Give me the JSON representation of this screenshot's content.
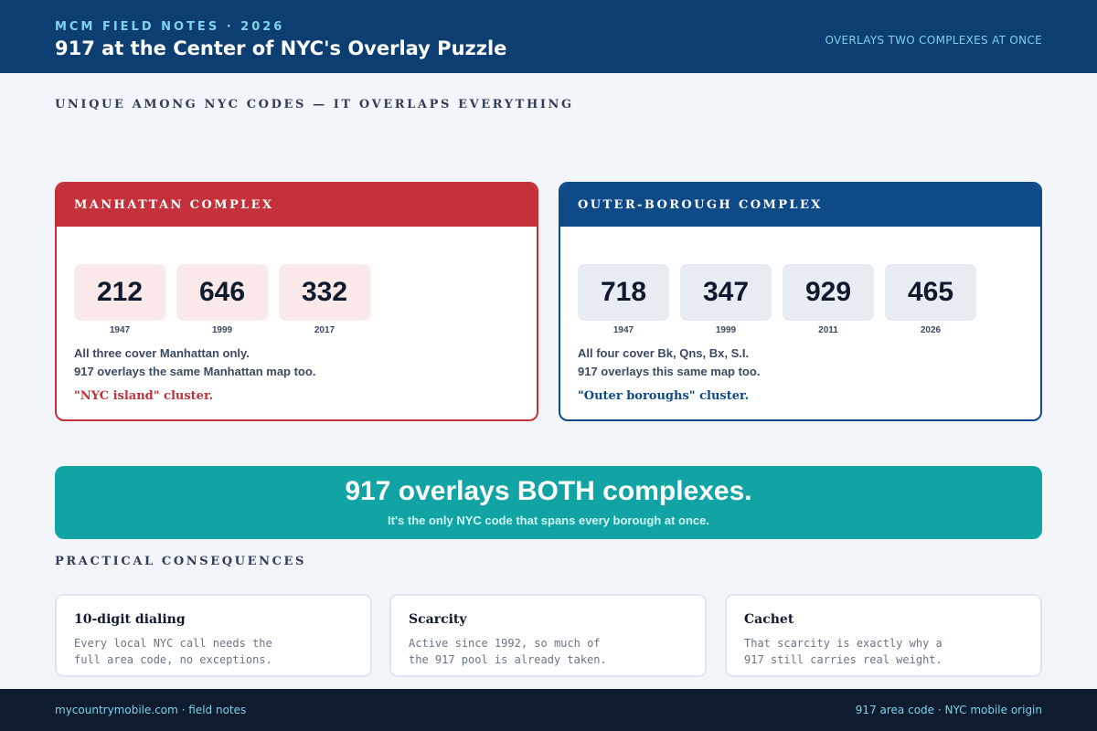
{
  "header": {
    "eyebrow": "MCM FIELD NOTES · 2026",
    "title": "917 at the Center of NYC's Overlay Puzzle",
    "tag": "OVERLAYS TWO COMPLEXES AT ONCE"
  },
  "section_top": "UNIQUE AMONG NYC CODES — IT OVERLAPS EVERYTHING",
  "manhattan": {
    "label": "MANHATTAN COMPLEX",
    "codes": [
      {
        "code": "212",
        "year": "1947"
      },
      {
        "code": "646",
        "year": "1999"
      },
      {
        "code": "332",
        "year": "2017"
      }
    ],
    "line1": "All three cover Manhattan only.",
    "line2": "917 overlays the same Manhattan map too.",
    "cluster": "\"NYC island\" cluster.",
    "accent": "#c4313a"
  },
  "outer": {
    "label": "OUTER-BOROUGH COMPLEX",
    "codes": [
      {
        "code": "718",
        "year": "1947"
      },
      {
        "code": "347",
        "year": "1999"
      },
      {
        "code": "929",
        "year": "2011"
      },
      {
        "code": "465",
        "year": "2026"
      }
    ],
    "line1": "All four cover Bk, Qns, Bx, S.I.",
    "line2": "917 overlays this same map too.",
    "cluster": "\"Outer boroughs\" cluster.",
    "accent": "#0e4a87"
  },
  "banner": {
    "headline": "917 overlays BOTH complexes.",
    "sub": "It's the only NYC code that spans every borough at once.",
    "color": "#12a4a5"
  },
  "section_bottom": "PRACTICAL CONSEQUENCES",
  "consequences": [
    {
      "title": "10-digit dialing",
      "line1": "Every local NYC call needs the",
      "line2": "full area code, no exceptions."
    },
    {
      "title": "Scarcity",
      "line1": "Active since 1992, so much of",
      "line2": "the 917 pool is already taken."
    },
    {
      "title": "Cachet",
      "line1": "That scarcity is exactly why a",
      "line2": "917 still carries real weight."
    }
  ],
  "footer": {
    "left": "mycountrymobile.com · field notes",
    "right": "917 area code · NYC mobile origin"
  }
}
